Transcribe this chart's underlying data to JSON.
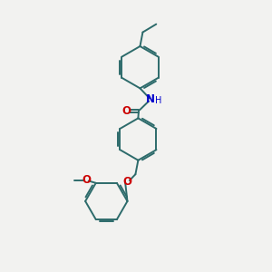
{
  "bg_color": "#f2f2f0",
  "bond_color": "#2d6b6b",
  "O_color": "#cc0000",
  "N_color": "#0000cc",
  "line_width": 1.4,
  "figsize": [
    3.0,
    3.0
  ],
  "dpi": 100,
  "xlim": [
    0,
    10
  ],
  "ylim": [
    0,
    10
  ]
}
